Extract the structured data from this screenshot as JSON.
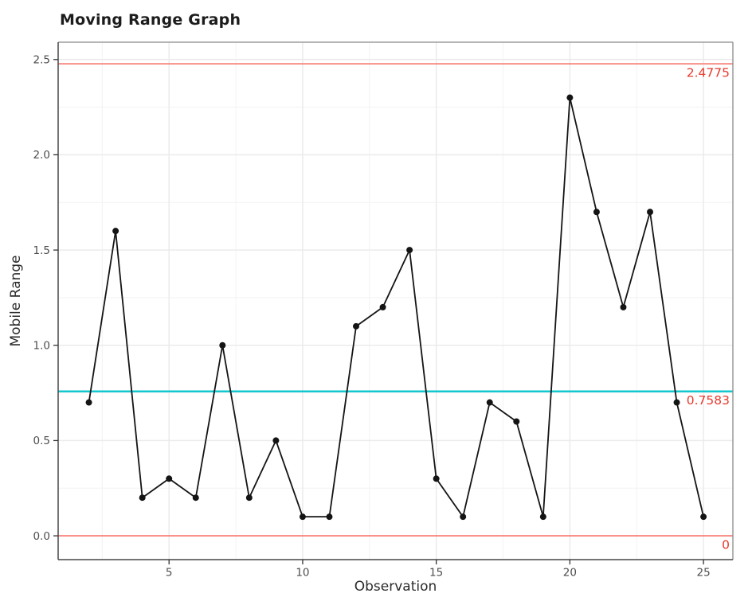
{
  "chart_data": {
    "type": "line",
    "title": "Moving Range Graph",
    "xlabel": "Observation",
    "ylabel": "Mobile Range",
    "x": [
      2,
      3,
      4,
      5,
      6,
      7,
      8,
      9,
      10,
      11,
      12,
      13,
      14,
      15,
      16,
      17,
      18,
      19,
      20,
      21,
      22,
      23,
      24,
      25
    ],
    "values": [
      0.7,
      1.6,
      0.2,
      0.3,
      0.2,
      1.0,
      0.2,
      0.5,
      0.1,
      0.1,
      1.1,
      1.2,
      1.5,
      0.3,
      0.1,
      0.7,
      0.6,
      0.1,
      2.3,
      1.7,
      1.2,
      1.7,
      0.7,
      0.1
    ],
    "series_color": "#141414",
    "xlim": [
      0.85,
      26.1
    ],
    "ylim": [
      -0.125,
      2.591
    ],
    "grid": true,
    "x_major_ticks": [
      5,
      10,
      15,
      20,
      25
    ],
    "x_tick_labels": [
      "5",
      "10",
      "15",
      "20",
      "25"
    ],
    "x_minor_ticks": [
      2.5,
      7.5,
      12.5,
      17.5,
      22.5
    ],
    "y_major_ticks": [
      0.0,
      0.5,
      1.0,
      1.5,
      2.0,
      2.5
    ],
    "y_tick_labels": [
      "0.0",
      "0.5",
      "1.0",
      "1.5",
      "2.0",
      "2.5"
    ],
    "y_minor_ticks": [
      0.25,
      0.75,
      1.25,
      1.75,
      2.25
    ],
    "reference_lines": [
      {
        "value": 2.4775,
        "label": "2.4775",
        "color": "#f8766d",
        "width": 1.6,
        "label_color": "#e8392c"
      },
      {
        "value": 0.7583,
        "label": "0.7583",
        "color": "#00c3cb",
        "width": 2.2,
        "label_color": "#e8392c"
      },
      {
        "value": 0,
        "label": "0",
        "color": "#f8766d",
        "width": 1.6,
        "label_color": "#e8392c"
      }
    ],
    "colors": {
      "grid_major": "#ebebeb",
      "grid_minor": "#f3f3f3",
      "panel_border_light": "#8a8a8a",
      "axis_line_dark": "#474747",
      "tick_mark": "#333333",
      "tick_label": "#4d4d4d"
    }
  }
}
